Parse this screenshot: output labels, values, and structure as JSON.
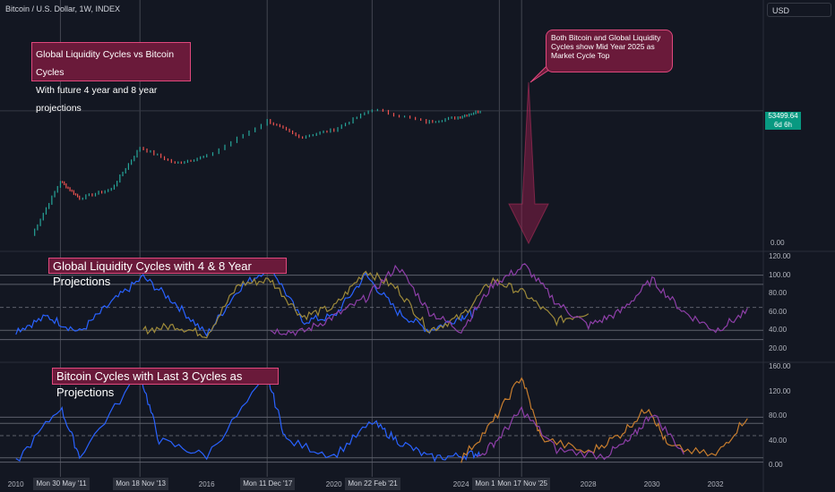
{
  "header": {
    "symbol_title": "Bitcoin / U.S. Dollar, 1W, INDEX",
    "currency": "USD"
  },
  "annotations": {
    "title_line1": "Global Liquidity Cycles vs Bitcoin Cycles",
    "title_line2": "With future 4 year and 8 year projections",
    "pane2_title": "Global Liquidity Cycles with 4 & 8 Year Projections",
    "pane3_title": "Bitcoin Cycles with Last 3 Cycles as Projections",
    "callout": "Both Bitcoin and Global Liquidity Cycles show Mid Year 2025 as Market Cycle Top"
  },
  "price_label": {
    "value": "53499.64",
    "countdown": "6d 6h"
  },
  "colors": {
    "background": "#131722",
    "up": "#26a69a",
    "down": "#ef5350",
    "liquidity_actual": "#2962ff",
    "projection_4y": "#9e8a3a",
    "projection_8y": "#8e3fa8",
    "btc_actual": "#2962ff",
    "btc_low": "#26a69a",
    "btc_peak": "#f23645",
    "btc_proj_orange": "#c77d2e",
    "btc_proj_purple": "#8e3fa8",
    "callout_border": "#e0487d",
    "price_tag": "#089981"
  },
  "axes": {
    "price_scale": [
      "0.00"
    ],
    "liquidity_scale": [
      "120.00",
      "100.00",
      "80.00",
      "60.00",
      "40.00",
      "20.00"
    ],
    "btc_cycle_scale": [
      "160.00",
      "120.00",
      "80.00",
      "40.00",
      "0.00"
    ],
    "x_years": [
      "2010",
      "2016",
      "2020",
      "2024",
      "2028",
      "2030",
      "2032"
    ],
    "date_markers": [
      "Mon 30 May '11",
      "Mon 18 Nov '13",
      "Mon 11 Dec '17",
      "Mon 22 Feb '21",
      "Mon 10 Mar '25",
      "Mon 17 Nov '25"
    ]
  },
  "chart_data": [
    {
      "type": "line",
      "title": "Bitcoin / U.S. Dollar, 1W, INDEX",
      "scale": "log",
      "last_value": 53499.64,
      "x": [
        2010.5,
        2011.4,
        2012.0,
        2013.0,
        2013.9,
        2015.0,
        2016.0,
        2017.9,
        2018.9,
        2020.0,
        2021.2,
        2022.9,
        2023.9,
        2024.6
      ],
      "y": [
        0.1,
        30,
        5,
        13,
        1100,
        200,
        430,
        19000,
        3200,
        7200,
        63000,
        16000,
        27000,
        53499.64
      ]
    },
    {
      "type": "line",
      "title": "Global Liquidity Cycles with 4 & 8 Year Projections",
      "ylim": [
        15,
        120
      ],
      "series": [
        {
          "x": [
            2010.0,
            2011.0,
            2012.0,
            2013.0,
            2014.0,
            2015.0,
            2016.0,
            2017.0,
            2018.0,
            2019.0,
            2020.0,
            2021.0,
            2022.0,
            2023.0,
            2024.0,
            2024.5
          ],
          "values": [
            40,
            55,
            38,
            70,
            98,
            70,
            35,
            85,
            110,
            50,
            55,
            100,
            60,
            40,
            55,
            60
          ]
        },
        {
          "x": [
            2014.0,
            2015.0,
            2016.0,
            2017.0,
            2018.0,
            2019.0,
            2020.0,
            2021.0,
            2022.0,
            2023.0,
            2024.0,
            2025.0,
            2026.0,
            2027.0,
            2028.0
          ],
          "values": [
            40,
            45,
            35,
            90,
            95,
            55,
            65,
            105,
            85,
            40,
            55,
            95,
            80,
            50,
            60
          ]
        },
        {
          "x": [
            2018.0,
            2019.0,
            2020.0,
            2021.0,
            2022.0,
            2023.0,
            2024.0,
            2025.0,
            2026.0,
            2027.0,
            2028.0,
            2029.0,
            2030.0,
            2031.0,
            2032.0,
            2033.0
          ],
          "values": [
            40,
            38,
            55,
            75,
            110,
            60,
            40,
            90,
            110,
            70,
            45,
            60,
            95,
            60,
            40,
            60
          ]
        }
      ]
    },
    {
      "type": "line",
      "title": "Bitcoin Cycles with Last 3 Cycles as Projections",
      "ylim": [
        0,
        160
      ],
      "series": [
        {
          "x": [
            2010.0,
            2011.4,
            2012.0,
            2013.9,
            2014.5,
            2016.0,
            2017.9,
            2018.5,
            2020.0,
            2021.2,
            2022.0,
            2023.0,
            2024.0,
            2024.6
          ],
          "values": [
            5,
            95,
            15,
            150,
            40,
            15,
            145,
            40,
            15,
            70,
            40,
            12,
            15,
            20
          ]
        },
        {
          "x": [
            2024.0,
            2025.0,
            2025.9,
            2026.5,
            2028.0,
            2029.0,
            2029.9,
            2030.5,
            2032.0,
            2033.0
          ],
          "values": [
            10,
            70,
            145,
            45,
            20,
            50,
            95,
            30,
            15,
            80
          ]
        },
        {
          "x": [
            2024.5,
            2025.2,
            2025.9,
            2027.0,
            2028.5,
            2029.3,
            2030.0,
            2031.0
          ],
          "values": [
            10,
            45,
            90,
            25,
            15,
            40,
            85,
            20
          ]
        }
      ]
    }
  ]
}
